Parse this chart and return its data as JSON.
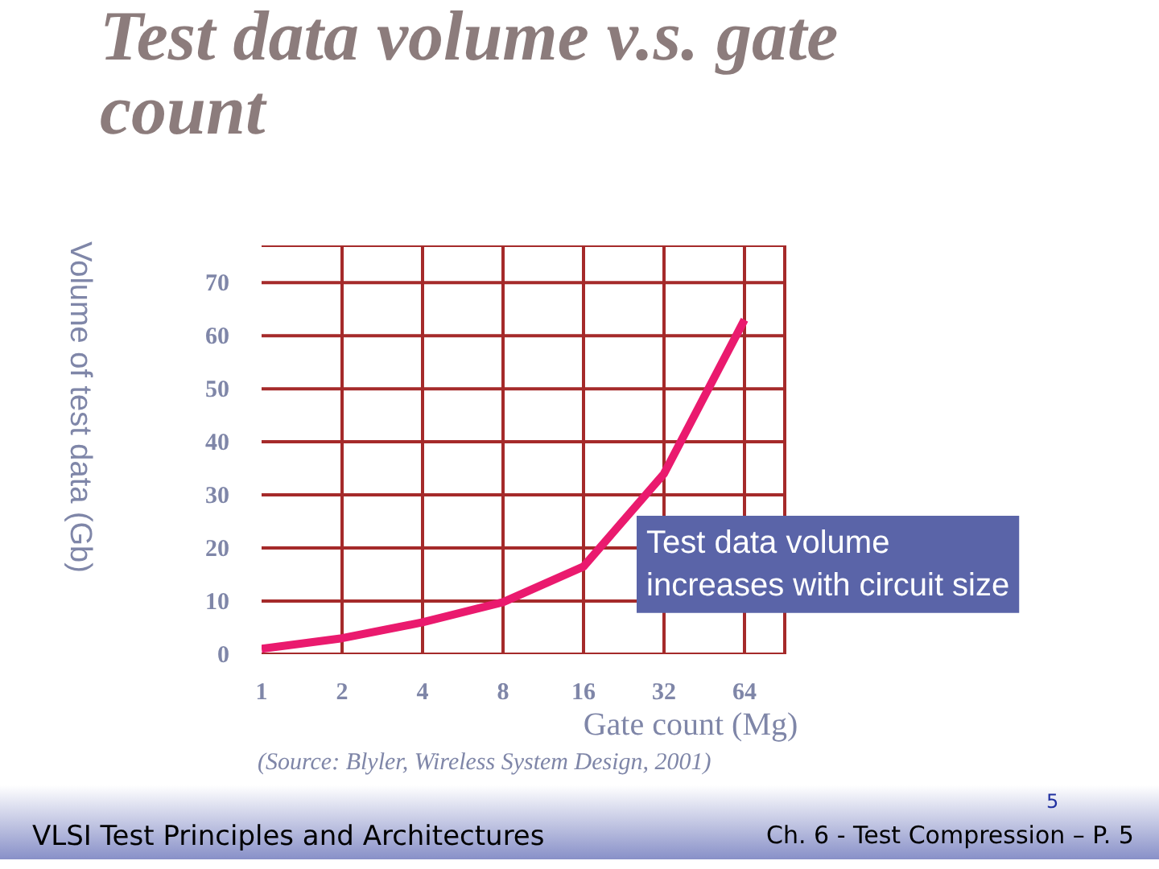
{
  "chart_data": {
    "type": "line",
    "title": "Test data volume v.s. gate count",
    "xlabel": "Gate count (Mg)",
    "ylabel": "Volume of test data (Gb)",
    "categories": [
      "1",
      "2",
      "4",
      "8",
      "16",
      "32",
      "64"
    ],
    "series": [
      {
        "color": "#ea1a6e",
        "values": [
          1,
          3,
          6,
          9.8,
          16.5,
          34,
          63
        ]
      }
    ],
    "ylim": [
      0,
      77
    ],
    "yticks": [
      0,
      10,
      20,
      30,
      40,
      50,
      60,
      70
    ],
    "grid": true,
    "marker": "none",
    "line_style": "solid",
    "annotations": [
      "Test data volume\nincreases with circuit size",
      "(Source: Blyler, Wireless System Design, 2001)",
      "VLSI Test Principles and Architectures",
      "Ch. 6 - Test Compression – P. 5",
      "5"
    ]
  }
}
